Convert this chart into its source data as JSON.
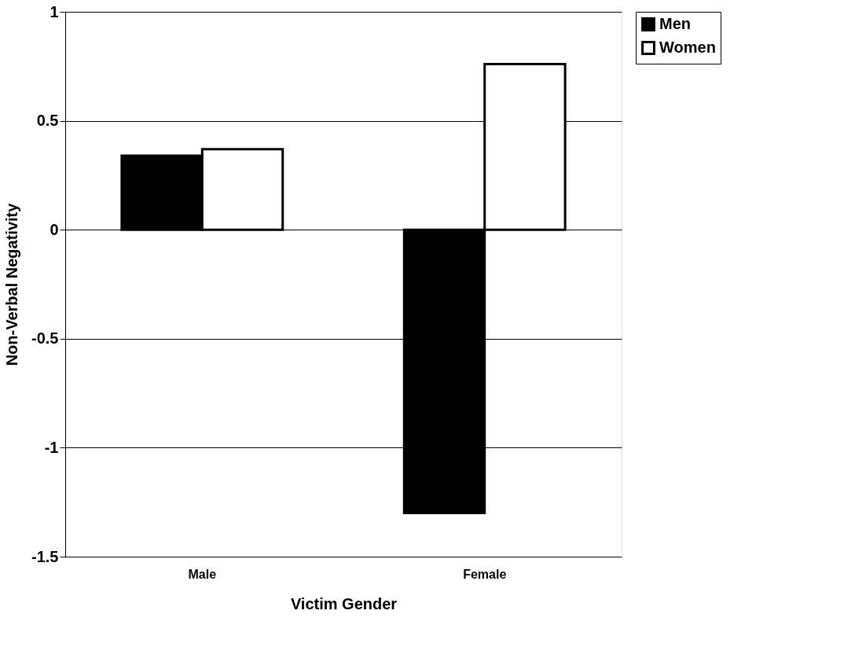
{
  "chart_data": {
    "type": "bar",
    "xlabel": "Victim Gender",
    "ylabel": "Non-Verbal Negativity",
    "categories": [
      "Male",
      "Female"
    ],
    "series": [
      {
        "name": "Men",
        "color": "#000000",
        "values": [
          0.34,
          -1.3
        ]
      },
      {
        "name": "Women",
        "color": "#ffffff",
        "values": [
          0.37,
          0.76
        ]
      }
    ],
    "ylim": [
      -1.5,
      1
    ],
    "yticks": [
      -1.5,
      -1,
      -0.5,
      0,
      0.5,
      1
    ],
    "grid": "y",
    "legend": "right"
  }
}
